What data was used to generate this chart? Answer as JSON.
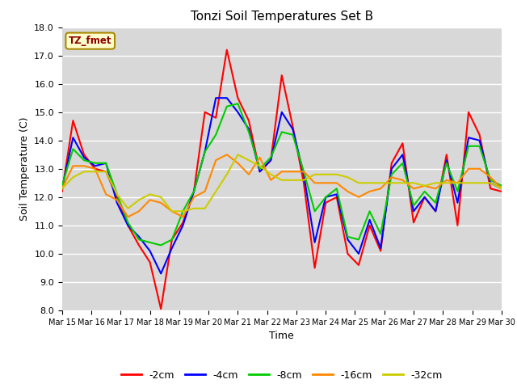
{
  "title": "Tonzi Soil Temperatures Set B",
  "xlabel": "Time",
  "ylabel": "Soil Temperature (C)",
  "ylim": [
    8.0,
    18.0
  ],
  "yticks": [
    8.0,
    9.0,
    10.0,
    11.0,
    12.0,
    13.0,
    14.0,
    15.0,
    16.0,
    17.0,
    18.0
  ],
  "xtick_labels": [
    "Mar 15",
    "Mar 16",
    "Mar 17",
    "Mar 18",
    "Mar 19",
    "Mar 20",
    "Mar 21",
    "Mar 22",
    "Mar 23",
    "Mar 24",
    "Mar 25",
    "Mar 26",
    "Mar 27",
    "Mar 28",
    "Mar 29",
    "Mar 30"
  ],
  "legend_label": "TZ_fmet",
  "series_labels": [
    "-2cm",
    "-4cm",
    "-8cm",
    "-16cm",
    "-32cm"
  ],
  "series_colors": [
    "#ff0000",
    "#0000ff",
    "#00cc00",
    "#ff8800",
    "#cccc00"
  ],
  "fig_bg": "#ffffff",
  "plot_bg": "#d8d8d8",
  "linewidth": 1.5,
  "data_2cm": [
    12.2,
    14.7,
    13.5,
    13.0,
    12.9,
    12.0,
    11.0,
    10.3,
    9.7,
    8.05,
    10.5,
    11.1,
    12.2,
    15.0,
    14.8,
    17.2,
    15.5,
    14.7,
    12.9,
    13.3,
    16.3,
    14.5,
    12.5,
    9.5,
    11.8,
    12.0,
    10.0,
    9.6,
    11.0,
    10.1,
    13.2,
    13.9,
    11.1,
    12.0,
    11.5,
    13.5,
    11.0,
    15.0,
    14.2,
    12.3,
    12.2
  ],
  "data_4cm": [
    12.3,
    14.1,
    13.4,
    13.1,
    13.2,
    11.8,
    11.0,
    10.6,
    10.1,
    9.3,
    10.2,
    11.0,
    12.2,
    13.6,
    15.5,
    15.5,
    15.0,
    14.4,
    12.9,
    13.3,
    15.0,
    14.4,
    12.8,
    10.4,
    12.0,
    12.1,
    10.5,
    10.0,
    11.2,
    10.2,
    13.0,
    13.5,
    11.5,
    12.0,
    11.5,
    13.3,
    11.8,
    14.1,
    14.0,
    12.5,
    12.3
  ],
  "data_8cm": [
    12.4,
    13.7,
    13.3,
    13.2,
    13.2,
    12.1,
    11.1,
    10.5,
    10.4,
    10.3,
    10.5,
    11.5,
    12.2,
    13.6,
    14.2,
    15.2,
    15.3,
    14.3,
    13.0,
    13.4,
    14.3,
    14.2,
    12.9,
    11.5,
    12.0,
    12.3,
    10.6,
    10.5,
    11.5,
    10.7,
    12.8,
    13.2,
    11.7,
    12.2,
    11.8,
    13.2,
    12.2,
    13.8,
    13.8,
    12.6,
    12.4
  ],
  "data_16cm": [
    12.3,
    13.1,
    13.1,
    13.0,
    12.1,
    11.9,
    11.3,
    11.5,
    11.9,
    11.8,
    11.5,
    11.3,
    12.0,
    12.2,
    13.3,
    13.5,
    13.2,
    12.8,
    13.4,
    12.6,
    12.9,
    12.9,
    12.9,
    12.5,
    12.5,
    12.5,
    12.2,
    12.0,
    12.2,
    12.3,
    12.7,
    12.6,
    12.3,
    12.4,
    12.3,
    12.6,
    12.5,
    13.0,
    13.0,
    12.7,
    12.3
  ],
  "data_32cm": [
    12.3,
    12.7,
    12.9,
    12.9,
    12.9,
    12.1,
    11.6,
    11.9,
    12.1,
    12.0,
    11.5,
    11.5,
    11.6,
    11.6,
    12.2,
    12.8,
    13.5,
    13.3,
    13.1,
    12.8,
    12.6,
    12.6,
    12.6,
    12.8,
    12.8,
    12.8,
    12.7,
    12.5,
    12.5,
    12.5,
    12.5,
    12.5,
    12.5,
    12.4,
    12.5,
    12.5,
    12.5,
    12.5,
    12.5,
    12.5,
    12.3
  ]
}
